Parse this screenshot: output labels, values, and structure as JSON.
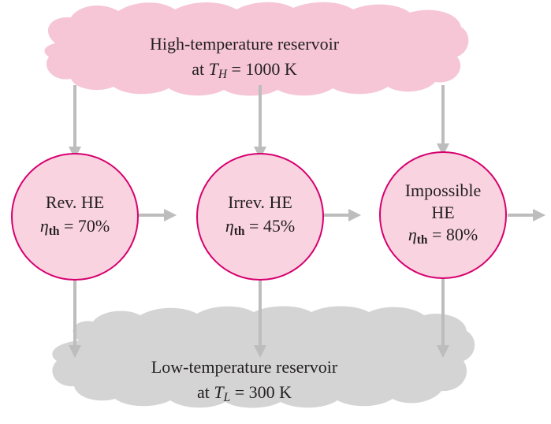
{
  "colors": {
    "hot_cloud": "#f6c6d6",
    "cold_cloud": "#d4d4d5",
    "engine_fill": "#f9d3e0",
    "engine_stroke": "#d6006f",
    "arrow": "#bdbdbd",
    "text": "#231f20"
  },
  "high_reservoir": {
    "title": "High-temperature reservoir",
    "at": "at",
    "symbol": "T",
    "subscript": "H",
    "value": "= 1000 K"
  },
  "low_reservoir": {
    "title": "Low-temperature reservoir",
    "at": "at",
    "symbol": "T",
    "subscript": "L",
    "value": "= 300 K"
  },
  "engines": [
    {
      "name_lines": [
        "Rev. HE"
      ],
      "eta_symbol": "η",
      "eta_sub": "th",
      "eta_value": "= 70%"
    },
    {
      "name_lines": [
        "Irrev. HE"
      ],
      "eta_symbol": "η",
      "eta_sub": "th",
      "eta_value": "= 45%"
    },
    {
      "name_lines": [
        "Impossible",
        "HE"
      ],
      "eta_symbol": "η",
      "eta_sub": "th",
      "eta_value": "= 80%"
    }
  ]
}
